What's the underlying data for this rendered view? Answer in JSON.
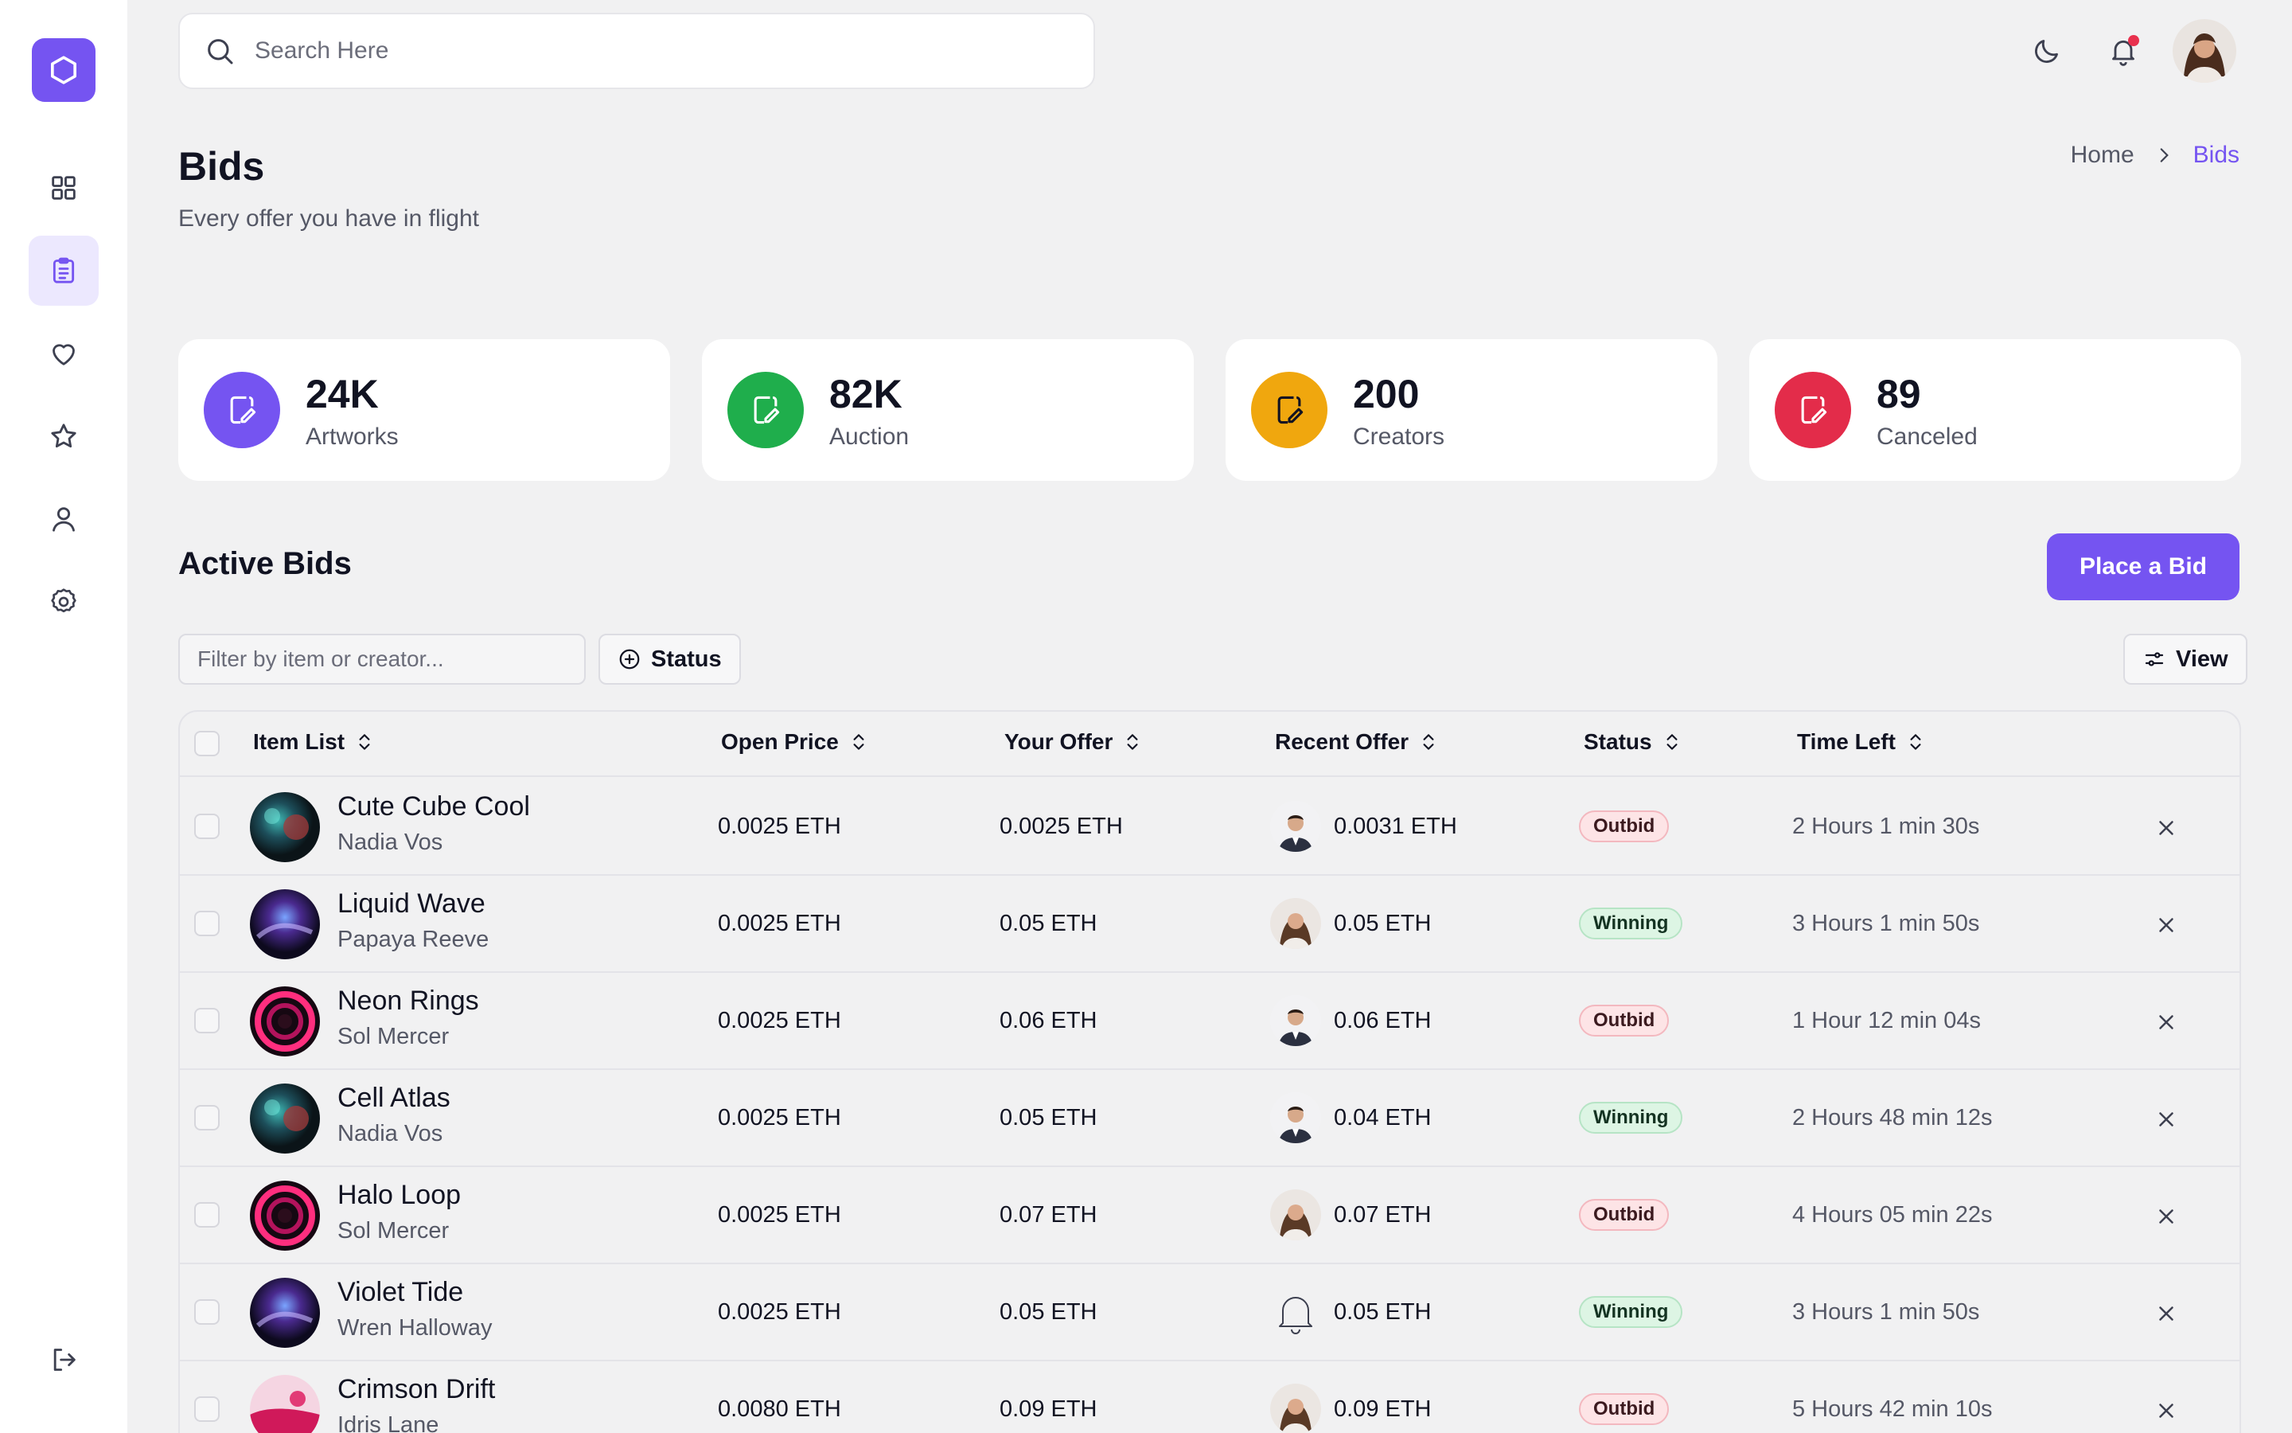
{
  "search": {
    "placeholder": "Search Here"
  },
  "page": {
    "title": "Bids",
    "subtitle": "Every offer you have in flight"
  },
  "breadcrumb": {
    "home": "Home",
    "current": "Bids"
  },
  "stats": [
    {
      "value": "24K",
      "label": "Artworks",
      "color": "#7554f1"
    },
    {
      "value": "82K",
      "label": "Auction",
      "color": "#1fae4c"
    },
    {
      "value": "200",
      "label": "Creators",
      "color": "#f0a70e"
    },
    {
      "value": "89",
      "label": "Canceled",
      "color": "#e32c4a"
    }
  ],
  "active_bids": {
    "title": "Active Bids",
    "place_bid_label": "Place a Bid",
    "filter_placeholder": "Filter by item or creator...",
    "status_button": "Status",
    "view_button": "View"
  },
  "table": {
    "columns": [
      "Item List",
      "Open Price",
      "Your Offer",
      "Recent Offer",
      "Status",
      "Time Left"
    ],
    "rows": [
      {
        "item": "Cute Cube Cool",
        "creator": "Nadia Vos",
        "open_price": "0.0025 ETH",
        "your_offer": "0.0025 ETH",
        "recent_offer": "0.0031 ETH",
        "status": "Outbid",
        "time_left": "2 Hours 1 min 30s",
        "thumb": "teal",
        "bidder": "man"
      },
      {
        "item": "Liquid Wave",
        "creator": "Papaya Reeve",
        "open_price": "0.0025 ETH",
        "your_offer": "0.05 ETH",
        "recent_offer": "0.05 ETH",
        "status": "Winning",
        "time_left": "3 Hours 1 min 50s",
        "thumb": "violet",
        "bidder": "woman"
      },
      {
        "item": "Neon Rings",
        "creator": "Sol Mercer",
        "open_price": "0.0025 ETH",
        "your_offer": "0.06 ETH",
        "recent_offer": "0.06 ETH",
        "status": "Outbid",
        "time_left": "1 Hour 12 min 04s",
        "thumb": "pink",
        "bidder": "man"
      },
      {
        "item": "Cell Atlas",
        "creator": "Nadia Vos",
        "open_price": "0.0025 ETH",
        "your_offer": "0.05 ETH",
        "recent_offer": "0.04 ETH",
        "status": "Winning",
        "time_left": "2 Hours 48 min 12s",
        "thumb": "teal",
        "bidder": "man"
      },
      {
        "item": "Halo Loop",
        "creator": "Sol Mercer",
        "open_price": "0.0025 ETH",
        "your_offer": "0.07 ETH",
        "recent_offer": "0.07 ETH",
        "status": "Outbid",
        "time_left": "4 Hours 05 min 22s",
        "thumb": "pink",
        "bidder": "woman"
      },
      {
        "item": "Violet Tide",
        "creator": "Wren Halloway",
        "open_price": "0.0025 ETH",
        "your_offer": "0.05 ETH",
        "recent_offer": "0.05 ETH",
        "status": "Winning",
        "time_left": "3 Hours 1 min 50s",
        "thumb": "violet",
        "bidder": "bell"
      },
      {
        "item": "Crimson Drift",
        "creator": "Idris Lane",
        "open_price": "0.0080 ETH",
        "your_offer": "0.09 ETH",
        "recent_offer": "0.09 ETH",
        "status": "Outbid",
        "time_left": "5 Hours 42 min 10s",
        "thumb": "crimson",
        "bidder": "woman"
      }
    ]
  }
}
